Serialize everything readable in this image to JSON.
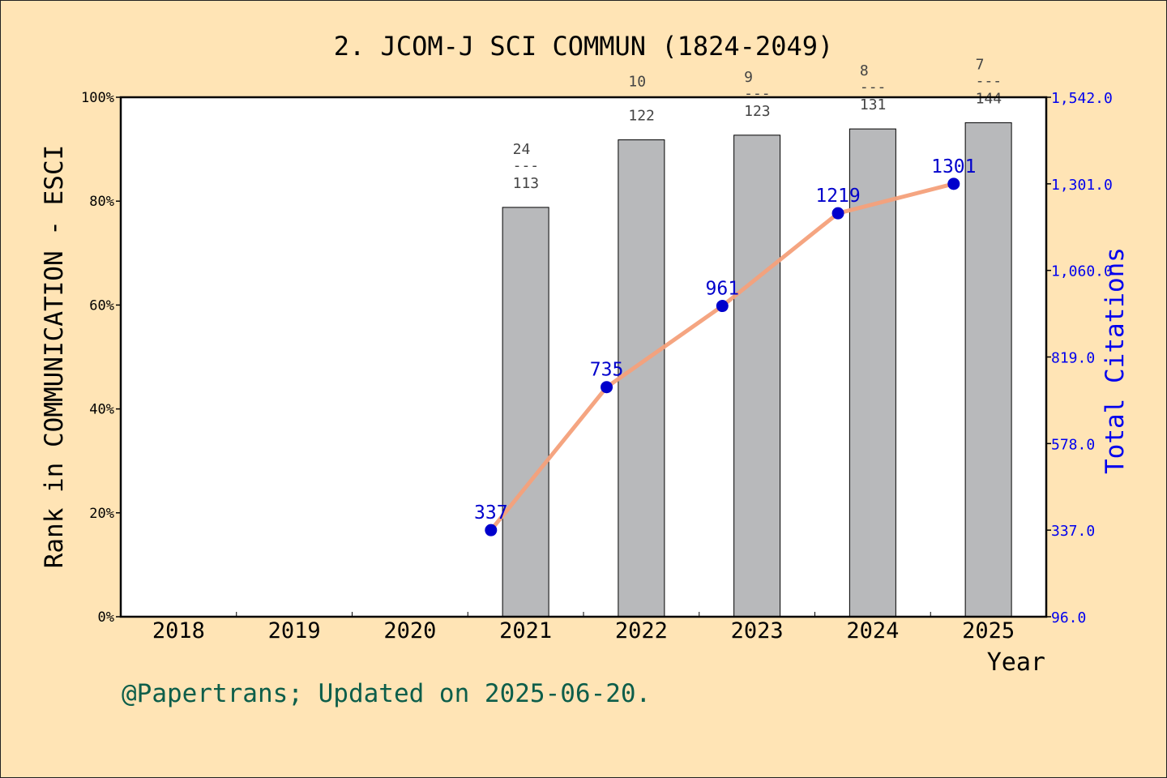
{
  "chart_data": {
    "type": "bar+line",
    "title": "2. JCOM-J SCI COMMUN (1824-2049)",
    "footer": "@Papertrans; Updated on 2025-06-20.",
    "xlabel": "Year",
    "ylabel_left": "Rank in COMMUNICATION - ESCI",
    "ylabel_right": "Total Citations",
    "categories": [
      "2018",
      "2019",
      "2020",
      "2021",
      "2022",
      "2023",
      "2024",
      "2025"
    ],
    "left_axis": {
      "ylim": [
        0,
        100
      ],
      "ticks": [
        0,
        20,
        40,
        60,
        80,
        100
      ],
      "tick_labels": [
        "0%",
        "20%",
        "40%",
        "60%",
        "80%",
        "100%"
      ]
    },
    "right_axis": {
      "ylim": [
        96.0,
        1542.0
      ],
      "ticks": [
        96.0,
        337.0,
        578.0,
        819.0,
        1060.0,
        1301.0,
        1542.0
      ],
      "tick_labels": [
        "96.0",
        "337.0",
        "578.0",
        "819.0",
        "1,060.0",
        "1,301.0",
        "1,542.0"
      ]
    },
    "bars": [
      {
        "year": "2021",
        "value": 78.8,
        "rank": "24",
        "sep": "---",
        "total": "113"
      },
      {
        "year": "2022",
        "value": 91.8,
        "rank": "10",
        "sep": "",
        "total": "122"
      },
      {
        "year": "2023",
        "value": 92.7,
        "rank": "9",
        "sep": "---",
        "total": "123"
      },
      {
        "year": "2024",
        "value": 93.9,
        "rank": "8",
        "sep": "---",
        "total": "131"
      },
      {
        "year": "2025",
        "value": 95.1,
        "rank": "7",
        "sep": "---",
        "total": "144"
      }
    ],
    "citations": [
      {
        "year": "2021",
        "value": 337
      },
      {
        "year": "2022",
        "value": 735
      },
      {
        "year": "2023",
        "value": 961
      },
      {
        "year": "2024",
        "value": 1219
      },
      {
        "year": "2025",
        "value": 1301
      }
    ],
    "colors": {
      "background": "#ffe4b5",
      "bar_fill": "#b8b9bb",
      "line": "#f4a07a",
      "marker": "#0000cc",
      "right_axis": "#0000ee",
      "footer": "#0d5e4a"
    }
  }
}
